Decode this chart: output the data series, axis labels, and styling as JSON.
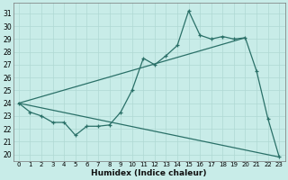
{
  "xlabel": "Humidex (Indice chaleur)",
  "xlim": [
    -0.5,
    23.5
  ],
  "ylim": [
    19.5,
    31.8
  ],
  "xticks": [
    0,
    1,
    2,
    3,
    4,
    5,
    6,
    7,
    8,
    9,
    10,
    11,
    12,
    13,
    14,
    15,
    16,
    17,
    18,
    19,
    20,
    21,
    22,
    23
  ],
  "yticks": [
    20,
    21,
    22,
    23,
    24,
    25,
    26,
    27,
    28,
    29,
    30,
    31
  ],
  "bg_color": "#c8ece8",
  "grid_color": "#afd8d3",
  "line_color": "#2a7068",
  "line1_x": [
    0,
    1,
    2,
    3,
    4,
    5,
    6,
    7,
    8,
    9,
    10,
    11,
    12,
    13,
    14,
    15,
    16,
    17,
    18,
    19,
    20,
    21,
    22,
    23
  ],
  "line1_y": [
    24.0,
    23.3,
    23.0,
    22.5,
    22.5,
    21.5,
    22.2,
    22.2,
    22.3,
    23.3,
    25.0,
    27.5,
    27.0,
    27.7,
    28.5,
    31.2,
    29.3,
    29.0,
    29.2,
    29.0,
    29.1,
    26.5,
    22.8,
    19.8
  ],
  "line2_x": [
    0,
    20
  ],
  "line2_y": [
    24.0,
    29.1
  ],
  "line3_x": [
    0,
    23
  ],
  "line3_y": [
    24.0,
    19.8
  ]
}
